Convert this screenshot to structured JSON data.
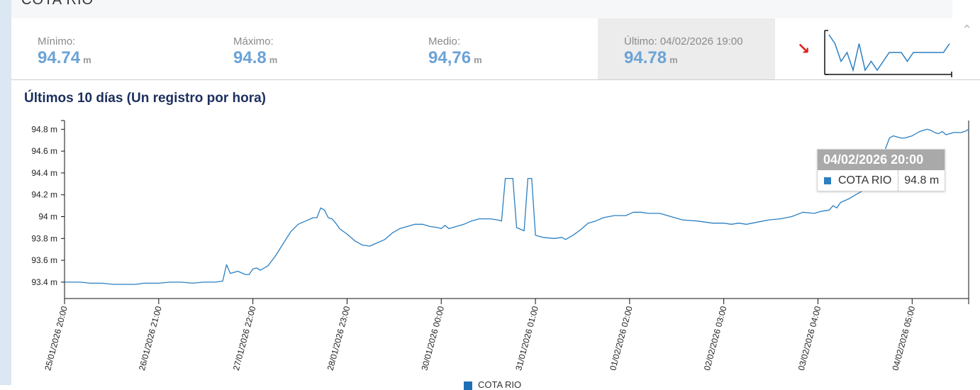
{
  "header": {
    "cut_title": "COTA RIO"
  },
  "stats": {
    "min": {
      "label": "Mínimo:",
      "value": "94.74",
      "unit": "m"
    },
    "max": {
      "label": "Máximo:",
      "value": "94.8",
      "unit": "m"
    },
    "avg": {
      "label": "Medio:",
      "value": "94,76",
      "unit": "m"
    },
    "last": {
      "label": "Último: 04/02/2026 19:00",
      "value": "94.78",
      "unit": "m"
    }
  },
  "trend": {
    "direction": "down",
    "color": "#e0201b"
  },
  "sparkline": {
    "values": [
      94.79,
      94.78,
      94.76,
      94.77,
      94.75,
      94.78,
      94.75,
      94.76,
      94.75,
      94.76,
      94.77,
      94.77,
      94.77,
      94.76,
      94.77,
      94.77,
      94.77,
      94.77,
      94.77,
      94.77,
      94.78
    ]
  },
  "chart_title": "Últimos 10 días (Un registro por hora)",
  "tooltip": {
    "title": "04/02/2026 20:00",
    "series": "COTA RIO",
    "value": "94.8 m"
  },
  "legend": {
    "label": "COTA RIO",
    "color": "#1f6fb5"
  },
  "chart_data": {
    "type": "line",
    "title": "Últimos 10 días (Un registro por hora)",
    "x_start": "25/01/2026 20:00",
    "x_end": "04/02/2026 20:00",
    "ylim": [
      93.25,
      94.88
    ],
    "yticks": [
      93.4,
      93.6,
      93.8,
      94.0,
      94.2,
      94.4,
      94.6,
      94.8
    ],
    "ytick_labels": [
      "93.4 m",
      "93.6 m",
      "93.8 m",
      "94 m",
      "94.2 m",
      "94.4 m",
      "94.6 m",
      "94.8 m"
    ],
    "xtick_labels": [
      "25/01/2026 20:00",
      "26/01/2026 21:00",
      "27/01/2026 22:00",
      "28/01/2026 23:00",
      "30/01/2026 00:00",
      "31/01/2026 01:00",
      "01/02/2026 02:00",
      "02/02/2026 03:00",
      "03/02/2026 04:00",
      "04/02/2026 05:00"
    ],
    "xtick_dates": [
      "2026-01-25 20:00",
      "2026-01-26 21:00",
      "2026-01-27 22:00",
      "2026-01-28 23:00",
      "2026-01-30 00:00",
      "2026-01-31 01:00",
      "2026-02-01 02:00",
      "2026-02-02 03:00",
      "2026-02-03 04:00",
      "2026-02-04 05:00"
    ],
    "grid": false,
    "legend_position": "bottom-center",
    "series": [
      {
        "name": "COTA RIO",
        "color": "#2b7fc1",
        "points": [
          [
            "2026-01-25 20:00",
            93.4
          ],
          [
            "2026-01-26 00:00",
            93.4
          ],
          [
            "2026-01-26 03:00",
            93.39
          ],
          [
            "2026-01-26 06:00",
            93.39
          ],
          [
            "2026-01-26 09:00",
            93.38
          ],
          [
            "2026-01-26 12:00",
            93.38
          ],
          [
            "2026-01-26 15:00",
            93.38
          ],
          [
            "2026-01-26 17:00",
            93.39
          ],
          [
            "2026-01-26 19:00",
            93.39
          ],
          [
            "2026-01-26 21:00",
            93.39
          ],
          [
            "2026-01-27 00:00",
            93.4
          ],
          [
            "2026-01-27 03:00",
            93.4
          ],
          [
            "2026-01-27 06:00",
            93.39
          ],
          [
            "2026-01-27 09:00",
            93.4
          ],
          [
            "2026-01-27 12:00",
            93.4
          ],
          [
            "2026-01-27 14:00",
            93.41
          ],
          [
            "2026-01-27 15:00",
            93.56
          ],
          [
            "2026-01-27 16:00",
            93.48
          ],
          [
            "2026-01-27 18:00",
            93.5
          ],
          [
            "2026-01-27 20:00",
            93.47
          ],
          [
            "2026-01-27 21:00",
            93.47
          ],
          [
            "2026-01-27 22:00",
            93.52
          ],
          [
            "2026-01-27 23:00",
            93.53
          ],
          [
            "2026-01-28 00:00",
            93.51
          ],
          [
            "2026-01-28 02:00",
            93.55
          ],
          [
            "2026-01-28 04:00",
            93.64
          ],
          [
            "2026-01-28 06:00",
            93.75
          ],
          [
            "2026-01-28 08:00",
            93.86
          ],
          [
            "2026-01-28 10:00",
            93.93
          ],
          [
            "2026-01-28 12:00",
            93.96
          ],
          [
            "2026-01-28 14:00",
            93.99
          ],
          [
            "2026-01-28 15:00",
            93.99
          ],
          [
            "2026-01-28 16:00",
            94.08
          ],
          [
            "2026-01-28 17:00",
            94.06
          ],
          [
            "2026-01-28 18:00",
            93.99
          ],
          [
            "2026-01-28 19:00",
            93.98
          ],
          [
            "2026-01-28 20:00",
            93.94
          ],
          [
            "2026-01-28 21:00",
            93.89
          ],
          [
            "2026-01-28 23:00",
            93.84
          ],
          [
            "2026-01-29 01:00",
            93.78
          ],
          [
            "2026-01-29 03:00",
            93.74
          ],
          [
            "2026-01-29 05:00",
            93.73
          ],
          [
            "2026-01-29 07:00",
            93.76
          ],
          [
            "2026-01-29 09:00",
            93.79
          ],
          [
            "2026-01-29 11:00",
            93.85
          ],
          [
            "2026-01-29 13:00",
            93.89
          ],
          [
            "2026-01-29 15:00",
            93.91
          ],
          [
            "2026-01-29 17:00",
            93.93
          ],
          [
            "2026-01-29 19:00",
            93.93
          ],
          [
            "2026-01-29 21:00",
            93.91
          ],
          [
            "2026-01-29 23:00",
            93.9
          ],
          [
            "2026-01-30 00:00",
            93.89
          ],
          [
            "2026-01-30 01:00",
            93.92
          ],
          [
            "2026-01-30 02:00",
            93.89
          ],
          [
            "2026-01-30 04:00",
            93.91
          ],
          [
            "2026-01-30 06:00",
            93.93
          ],
          [
            "2026-01-30 08:00",
            93.96
          ],
          [
            "2026-01-30 10:00",
            93.98
          ],
          [
            "2026-01-30 13:00",
            93.98
          ],
          [
            "2026-01-30 15:00",
            93.97
          ],
          [
            "2026-01-30 16:00",
            93.96
          ],
          [
            "2026-01-30 17:00",
            94.35
          ],
          [
            "2026-01-30 18:00",
            94.35
          ],
          [
            "2026-01-30 19:00",
            94.35
          ],
          [
            "2026-01-30 20:00",
            93.9
          ],
          [
            "2026-01-30 22:00",
            93.87
          ],
          [
            "2026-01-30 23:00",
            94.35
          ],
          [
            "2026-01-31 00:00",
            94.35
          ],
          [
            "2026-01-31 01:00",
            93.83
          ],
          [
            "2026-01-31 03:00",
            93.81
          ],
          [
            "2026-01-31 06:00",
            93.8
          ],
          [
            "2026-01-31 08:00",
            93.81
          ],
          [
            "2026-01-31 09:00",
            93.79
          ],
          [
            "2026-01-31 11:00",
            93.83
          ],
          [
            "2026-01-31 13:00",
            93.88
          ],
          [
            "2026-01-31 15:00",
            93.94
          ],
          [
            "2026-01-31 17:00",
            93.96
          ],
          [
            "2026-01-31 19:00",
            93.99
          ],
          [
            "2026-01-31 22:00",
            94.01
          ],
          [
            "2026-02-01 01:00",
            94.01
          ],
          [
            "2026-02-01 03:00",
            94.04
          ],
          [
            "2026-02-01 05:00",
            94.04
          ],
          [
            "2026-02-01 07:00",
            94.03
          ],
          [
            "2026-02-01 10:00",
            94.03
          ],
          [
            "2026-02-01 13:00",
            94.0
          ],
          [
            "2026-02-01 16:00",
            93.97
          ],
          [
            "2026-02-01 20:00",
            93.96
          ],
          [
            "2026-02-02 00:00",
            93.94
          ],
          [
            "2026-02-02 03:00",
            93.94
          ],
          [
            "2026-02-02 05:00",
            93.93
          ],
          [
            "2026-02-02 07:00",
            93.94
          ],
          [
            "2026-02-02 09:00",
            93.93
          ],
          [
            "2026-02-02 12:00",
            93.95
          ],
          [
            "2026-02-02 15:00",
            93.97
          ],
          [
            "2026-02-02 18:00",
            93.98
          ],
          [
            "2026-02-02 21:00",
            94.0
          ],
          [
            "2026-02-03 00:00",
            94.04
          ],
          [
            "2026-02-03 03:00",
            94.03
          ],
          [
            "2026-02-03 05:00",
            94.05
          ],
          [
            "2026-02-03 07:00",
            94.06
          ],
          [
            "2026-02-03 08:00",
            94.1
          ],
          [
            "2026-02-03 09:00",
            94.08
          ],
          [
            "2026-02-03 10:00",
            94.13
          ],
          [
            "2026-02-03 12:00",
            94.16
          ],
          [
            "2026-02-03 14:00",
            94.2
          ],
          [
            "2026-02-03 16:00",
            94.24
          ],
          [
            "2026-02-03 18:00",
            94.31
          ],
          [
            "2026-02-03 20:00",
            94.38
          ],
          [
            "2026-02-03 21:00",
            94.5
          ],
          [
            "2026-02-03 22:00",
            94.63
          ],
          [
            "2026-02-03 23:00",
            94.72
          ],
          [
            "2026-02-04 00:00",
            94.74
          ],
          [
            "2026-02-04 01:00",
            94.73
          ],
          [
            "2026-02-04 02:00",
            94.72
          ],
          [
            "2026-02-04 03:00",
            94.72
          ],
          [
            "2026-02-04 05:00",
            94.74
          ],
          [
            "2026-02-04 06:00",
            94.76
          ],
          [
            "2026-02-04 07:00",
            94.78
          ],
          [
            "2026-02-04 08:00",
            94.79
          ],
          [
            "2026-02-04 09:00",
            94.8
          ],
          [
            "2026-02-04 10:00",
            94.79
          ],
          [
            "2026-02-04 11:00",
            94.77
          ],
          [
            "2026-02-04 12:00",
            94.76
          ],
          [
            "2026-02-04 13:00",
            94.78
          ],
          [
            "2026-02-04 14:00",
            94.75
          ],
          [
            "2026-02-04 15:00",
            94.76
          ],
          [
            "2026-02-04 16:00",
            94.77
          ],
          [
            "2026-02-04 17:00",
            94.77
          ],
          [
            "2026-02-04 18:00",
            94.77
          ],
          [
            "2026-02-04 19:00",
            94.78
          ],
          [
            "2026-02-04 20:00",
            94.8
          ]
        ]
      }
    ]
  }
}
